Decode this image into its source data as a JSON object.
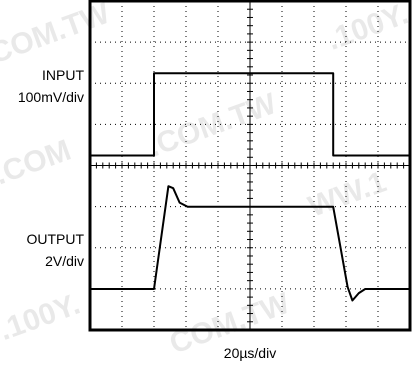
{
  "chart_data": {
    "type": "line",
    "grid": true,
    "x_scale_label": "20µs/div",
    "divisions": {
      "x": 10,
      "y": 8
    },
    "channels": [
      {
        "name": "INPUT",
        "scale": "100mV/div",
        "points": [
          [
            0,
            0
          ],
          [
            2.0,
            0
          ],
          [
            2.0,
            2.0
          ],
          [
            7.6,
            2.0
          ],
          [
            7.6,
            0
          ],
          [
            10,
            0
          ]
        ]
      },
      {
        "name": "OUTPUT",
        "scale": "2V/div",
        "points": [
          [
            0,
            0
          ],
          [
            2.0,
            0
          ],
          [
            2.45,
            2.5
          ],
          [
            2.6,
            2.45
          ],
          [
            2.8,
            2.1
          ],
          [
            3.05,
            2.0
          ],
          [
            7.6,
            2.0
          ],
          [
            8.05,
            0.05
          ],
          [
            8.2,
            -0.28
          ],
          [
            8.4,
            -0.1
          ],
          [
            8.6,
            0
          ],
          [
            10,
            0
          ]
        ]
      }
    ]
  }
}
